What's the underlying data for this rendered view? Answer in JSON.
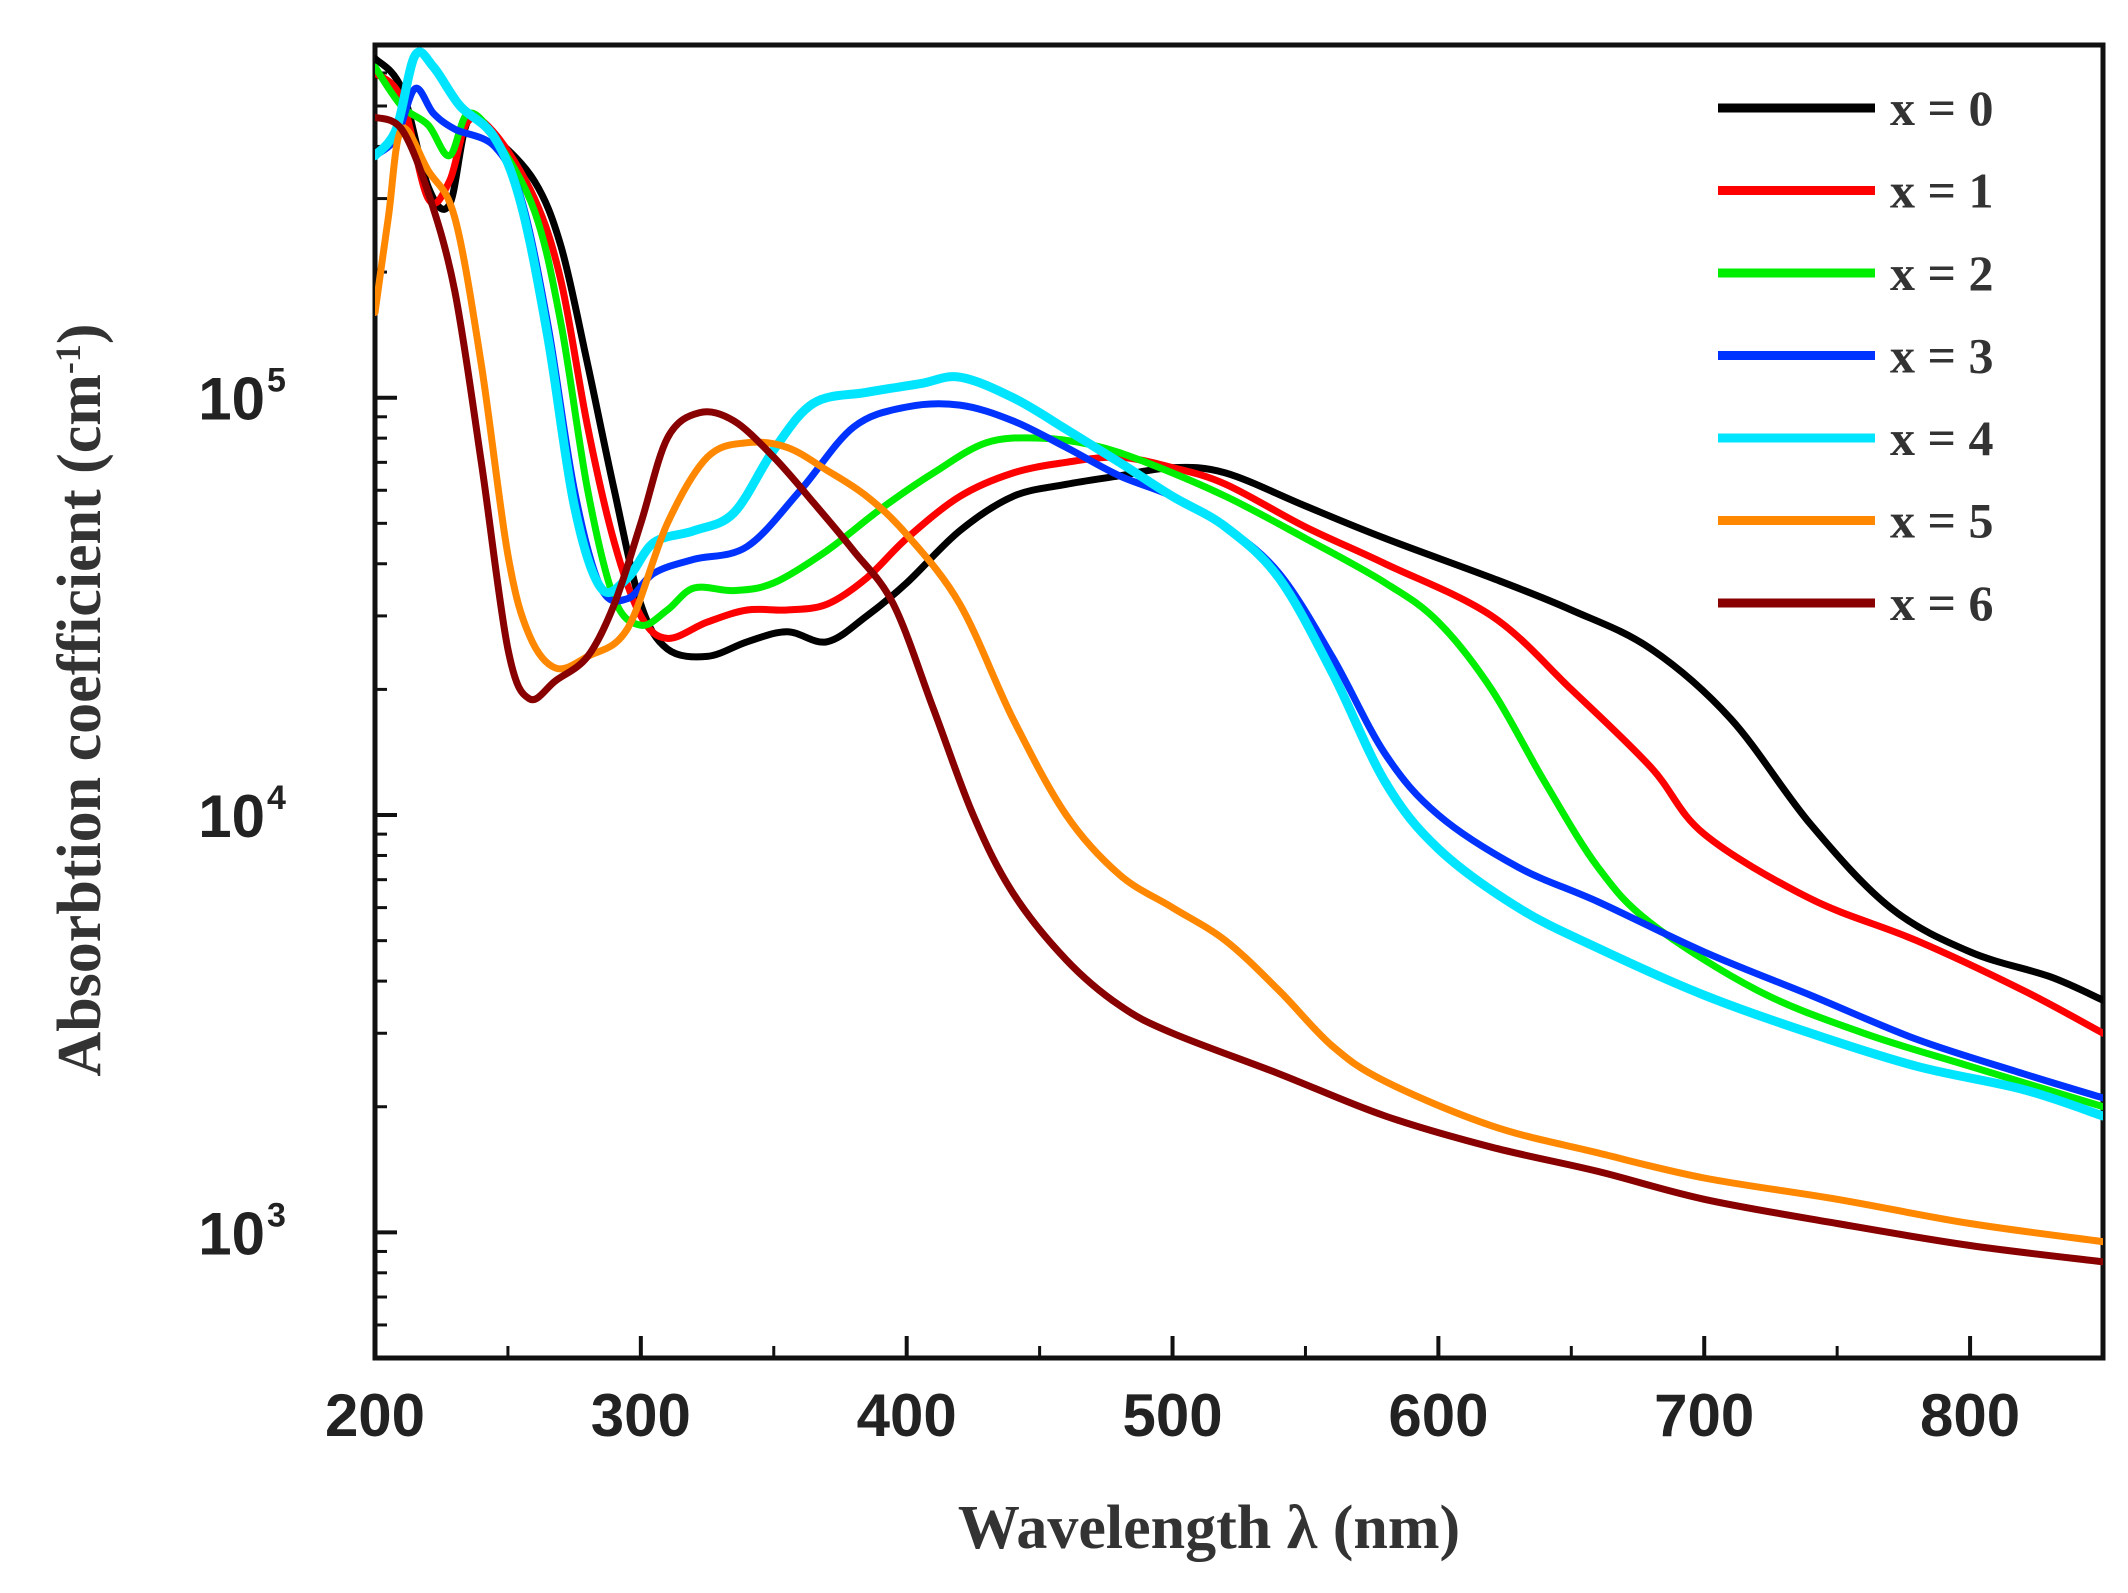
{
  "chart_data": {
    "type": "line",
    "title": "",
    "xlabel": "Wavelength λ (nm)",
    "ylabel": "Absorbtion coefficient (cm",
    "ylabel_sup": "-1",
    "ylabel_close": ")",
    "xlim": [
      200,
      850
    ],
    "ylim": [
      500,
      700000
    ],
    "yscale": "log",
    "x_ticks": [
      200,
      300,
      400,
      500,
      600,
      700,
      800
    ],
    "x_tick_labels": [
      "200",
      "300",
      "400",
      "500",
      "600",
      "700",
      "800"
    ],
    "y_ticks": [
      1000,
      10000,
      100000
    ],
    "y_tick_labels": [
      {
        "base": "10",
        "exp": "3"
      },
      {
        "base": "10",
        "exp": "4"
      },
      {
        "base": "10",
        "exp": "5"
      }
    ],
    "legend_position": "top-right",
    "grid": false,
    "series": [
      {
        "name": "x = 0",
        "color": "#000000",
        "points": [
          [
            200,
            650000
          ],
          [
            210,
            550000
          ],
          [
            220,
            320000
          ],
          [
            228,
            290000
          ],
          [
            235,
            460000
          ],
          [
            245,
            420000
          ],
          [
            260,
            330000
          ],
          [
            270,
            230000
          ],
          [
            280,
            120000
          ],
          [
            290,
            60000
          ],
          [
            300,
            32000
          ],
          [
            310,
            25000
          ],
          [
            325,
            24000
          ],
          [
            340,
            26000
          ],
          [
            355,
            27500
          ],
          [
            370,
            26000
          ],
          [
            385,
            30000
          ],
          [
            400,
            36000
          ],
          [
            420,
            48000
          ],
          [
            440,
            58000
          ],
          [
            460,
            62000
          ],
          [
            480,
            65000
          ],
          [
            500,
            68000
          ],
          [
            520,
            66000
          ],
          [
            550,
            55000
          ],
          [
            580,
            46000
          ],
          [
            620,
            37000
          ],
          [
            650,
            31000
          ],
          [
            680,
            25000
          ],
          [
            710,
            17000
          ],
          [
            740,
            9500
          ],
          [
            770,
            6000
          ],
          [
            800,
            4700
          ],
          [
            830,
            4100
          ],
          [
            850,
            3600
          ]
        ]
      },
      {
        "name": "x = 1",
        "color": "#ff0000",
        "points": [
          [
            200,
            600000
          ],
          [
            210,
            520000
          ],
          [
            220,
            300000
          ],
          [
            228,
            330000
          ],
          [
            235,
            460000
          ],
          [
            245,
            430000
          ],
          [
            260,
            300000
          ],
          [
            270,
            190000
          ],
          [
            280,
            85000
          ],
          [
            290,
            45000
          ],
          [
            300,
            30000
          ],
          [
            310,
            26500
          ],
          [
            325,
            29000
          ],
          [
            340,
            31000
          ],
          [
            355,
            31000
          ],
          [
            370,
            32000
          ],
          [
            385,
            37000
          ],
          [
            400,
            46000
          ],
          [
            420,
            58000
          ],
          [
            440,
            66000
          ],
          [
            460,
            70000
          ],
          [
            480,
            72000
          ],
          [
            500,
            68000
          ],
          [
            520,
            62000
          ],
          [
            550,
            49000
          ],
          [
            580,
            40000
          ],
          [
            620,
            30000
          ],
          [
            650,
            20000
          ],
          [
            680,
            13000
          ],
          [
            700,
            9000
          ],
          [
            740,
            6300
          ],
          [
            780,
            5000
          ],
          [
            820,
            3800
          ],
          [
            850,
            3000
          ]
        ]
      },
      {
        "name": "x = 2",
        "color": "#00ee00",
        "points": [
          [
            200,
            620000
          ],
          [
            210,
            500000
          ],
          [
            220,
            450000
          ],
          [
            228,
            380000
          ],
          [
            235,
            480000
          ],
          [
            245,
            420000
          ],
          [
            260,
            280000
          ],
          [
            270,
            150000
          ],
          [
            280,
            60000
          ],
          [
            290,
            33000
          ],
          [
            300,
            28500
          ],
          [
            310,
            31000
          ],
          [
            320,
            35000
          ],
          [
            335,
            34500
          ],
          [
            350,
            36000
          ],
          [
            370,
            43000
          ],
          [
            390,
            54000
          ],
          [
            410,
            66000
          ],
          [
            430,
            78000
          ],
          [
            450,
            80000
          ],
          [
            470,
            77000
          ],
          [
            490,
            70000
          ],
          [
            520,
            58000
          ],
          [
            550,
            46000
          ],
          [
            580,
            36000
          ],
          [
            600,
            29000
          ],
          [
            620,
            20000
          ],
          [
            640,
            12000
          ],
          [
            660,
            7500
          ],
          [
            680,
            5500
          ],
          [
            720,
            3800
          ],
          [
            760,
            3000
          ],
          [
            800,
            2500
          ],
          [
            850,
            2000
          ]
        ]
      },
      {
        "name": "x = 3",
        "color": "#0033ff",
        "points": [
          [
            200,
            380000
          ],
          [
            208,
            420000
          ],
          [
            215,
            550000
          ],
          [
            222,
            480000
          ],
          [
            230,
            440000
          ],
          [
            245,
            400000
          ],
          [
            255,
            300000
          ],
          [
            265,
            150000
          ],
          [
            275,
            60000
          ],
          [
            285,
            35000
          ],
          [
            295,
            33000
          ],
          [
            305,
            38000
          ],
          [
            320,
            41000
          ],
          [
            340,
            44000
          ],
          [
            360,
            60000
          ],
          [
            380,
            85000
          ],
          [
            400,
            95000
          ],
          [
            420,
            96000
          ],
          [
            440,
            88000
          ],
          [
            460,
            76000
          ],
          [
            480,
            65000
          ],
          [
            500,
            58000
          ],
          [
            520,
            49000
          ],
          [
            540,
            38000
          ],
          [
            560,
            24000
          ],
          [
            580,
            14000
          ],
          [
            600,
            10000
          ],
          [
            630,
            7500
          ],
          [
            660,
            6200
          ],
          [
            700,
            4700
          ],
          [
            740,
            3700
          ],
          [
            780,
            2900
          ],
          [
            820,
            2400
          ],
          [
            850,
            2100
          ]
        ]
      },
      {
        "name": "x = 4",
        "color": "#00e5ff",
        "points": [
          [
            200,
            380000
          ],
          [
            208,
            440000
          ],
          [
            215,
            660000
          ],
          [
            222,
            620000
          ],
          [
            232,
            500000
          ],
          [
            245,
            420000
          ],
          [
            255,
            290000
          ],
          [
            265,
            140000
          ],
          [
            275,
            55000
          ],
          [
            285,
            35000
          ],
          [
            295,
            37000
          ],
          [
            305,
            45000
          ],
          [
            320,
            48000
          ],
          [
            335,
            53000
          ],
          [
            350,
            75000
          ],
          [
            365,
            97000
          ],
          [
            385,
            103000
          ],
          [
            405,
            108000
          ],
          [
            420,
            112000
          ],
          [
            440,
            100000
          ],
          [
            460,
            84000
          ],
          [
            480,
            70000
          ],
          [
            500,
            58000
          ],
          [
            520,
            49000
          ],
          [
            540,
            37000
          ],
          [
            560,
            22000
          ],
          [
            580,
            12000
          ],
          [
            600,
            8300
          ],
          [
            630,
            6000
          ],
          [
            660,
            4800
          ],
          [
            700,
            3700
          ],
          [
            740,
            3000
          ],
          [
            780,
            2500
          ],
          [
            820,
            2200
          ],
          [
            850,
            1900
          ]
        ]
      },
      {
        "name": "x = 5",
        "color": "#ff8800",
        "points": [
          [
            200,
            160000
          ],
          [
            205,
            270000
          ],
          [
            210,
            440000
          ],
          [
            220,
            350000
          ],
          [
            230,
            270000
          ],
          [
            240,
            120000
          ],
          [
            250,
            42000
          ],
          [
            258,
            27000
          ],
          [
            268,
            22500
          ],
          [
            280,
            24000
          ],
          [
            295,
            28000
          ],
          [
            310,
            50000
          ],
          [
            325,
            72000
          ],
          [
            340,
            78000
          ],
          [
            355,
            76000
          ],
          [
            370,
            67000
          ],
          [
            385,
            58000
          ],
          [
            400,
            47000
          ],
          [
            420,
            32000
          ],
          [
            440,
            17000
          ],
          [
            460,
            10000
          ],
          [
            480,
            7200
          ],
          [
            500,
            6000
          ],
          [
            520,
            5000
          ],
          [
            540,
            3800
          ],
          [
            560,
            2800
          ],
          [
            580,
            2300
          ],
          [
            620,
            1800
          ],
          [
            660,
            1550
          ],
          [
            700,
            1350
          ],
          [
            750,
            1200
          ],
          [
            800,
            1050
          ],
          [
            850,
            950
          ]
        ]
      },
      {
        "name": "x = 6",
        "color": "#880000",
        "points": [
          [
            200,
            470000
          ],
          [
            210,
            440000
          ],
          [
            220,
            310000
          ],
          [
            230,
            180000
          ],
          [
            240,
            70000
          ],
          [
            250,
            25000
          ],
          [
            258,
            19000
          ],
          [
            268,
            21000
          ],
          [
            280,
            24000
          ],
          [
            290,
            32000
          ],
          [
            300,
            50000
          ],
          [
            310,
            80000
          ],
          [
            322,
            92000
          ],
          [
            335,
            88000
          ],
          [
            350,
            72000
          ],
          [
            365,
            56000
          ],
          [
            380,
            43000
          ],
          [
            395,
            32000
          ],
          [
            410,
            18000
          ],
          [
            425,
            10000
          ],
          [
            440,
            6500
          ],
          [
            460,
            4500
          ],
          [
            480,
            3500
          ],
          [
            500,
            3000
          ],
          [
            540,
            2400
          ],
          [
            580,
            1900
          ],
          [
            620,
            1600
          ],
          [
            660,
            1400
          ],
          [
            700,
            1200
          ],
          [
            750,
            1050
          ],
          [
            800,
            930
          ],
          [
            850,
            850
          ]
        ]
      }
    ]
  }
}
